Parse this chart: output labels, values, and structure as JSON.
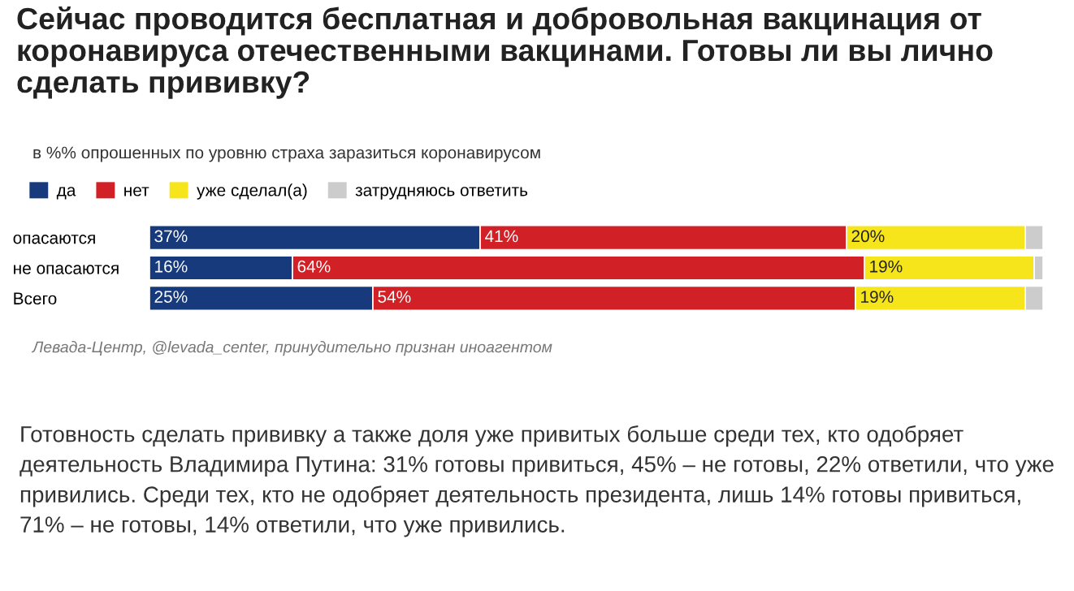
{
  "chart_data": {
    "type": "bar",
    "orientation": "horizontal",
    "stacked": true,
    "title": "Сейчас проводится бесплатная и добровольная вакцинация от коронавируса отечественными вакцинами. Готовы ли вы лично сделать прививку?",
    "subtitle": "в %% опрошенных по уровню страха заразиться коронавирусом",
    "categories": [
      "опасаются",
      "не опасаются",
      "Всего"
    ],
    "series": [
      {
        "name": "да",
        "color": "#173a7c",
        "values": [
          37,
          16,
          25
        ],
        "value_labels": [
          "37%",
          "16%",
          "25%"
        ]
      },
      {
        "name": "нет",
        "color": "#d12127",
        "values": [
          41,
          64,
          54
        ],
        "value_labels": [
          "41%",
          "64%",
          "54%"
        ]
      },
      {
        "name": "уже сделал(а)",
        "color": "#f7e51c",
        "values": [
          20,
          19,
          19
        ],
        "value_labels": [
          "20%",
          "19%",
          "19%"
        ]
      },
      {
        "name": "затрудняюсь ответить",
        "color": "#cccccc",
        "values": [
          2,
          1,
          2
        ],
        "value_labels": [
          null,
          null,
          null
        ]
      }
    ],
    "xlim": [
      0,
      100
    ],
    "tick_labels": "y",
    "legend": "top left",
    "grid": false,
    "annotations": [
      "Левада-Центр, @levada_center, принудительно признан иноагентом",
      "Готовность сделать прививку а также доля уже привитых больше среди тех, кто одобряет деятельность Владимира Путина: 31% готовы привиться, 45% – не готовы, 22% ответили, что уже привились. Среди тех, кто не одобряет деятельность президента, лишь 14% готовы привиться, 71% – не готовы, 14% ответили, что уже привились."
    ]
  }
}
